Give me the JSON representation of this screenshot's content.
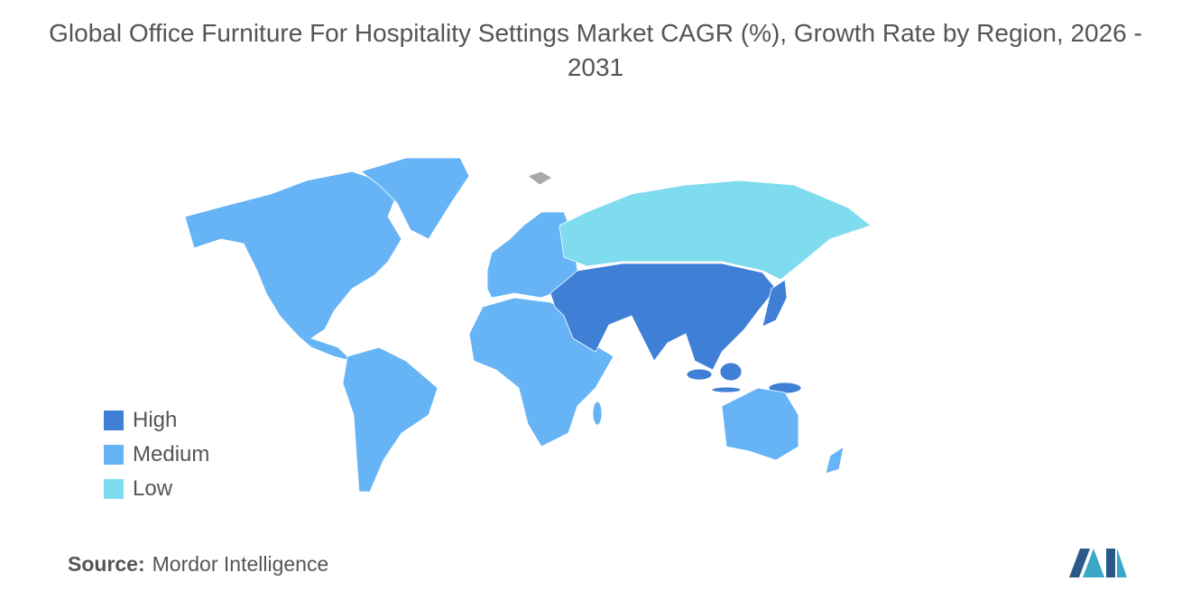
{
  "title": "Global Office Furniture For Hospitality Settings Market CAGR (%), Growth Rate by Region, 2026 - 2031",
  "legend": [
    {
      "label": "High",
      "color": "#3f80d6"
    },
    {
      "label": "Medium",
      "color": "#66b4f6"
    },
    {
      "label": "Low",
      "color": "#7fdcef"
    }
  ],
  "source": {
    "label": "Source:",
    "text": "Mordor Intelligence"
  }
}
